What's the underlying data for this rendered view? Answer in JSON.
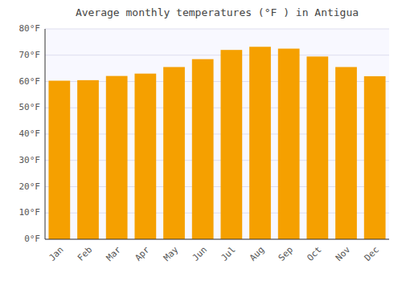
{
  "chart_data": {
    "type": "bar",
    "title": "Average monthly temperatures (°F ) in Antigua",
    "categories": [
      "Jan",
      "Feb",
      "Mar",
      "Apr",
      "May",
      "Jun",
      "Jul",
      "Aug",
      "Sep",
      "Oct",
      "Nov",
      "Dec"
    ],
    "values": [
      60.3,
      60.5,
      62.1,
      63.0,
      65.5,
      68.5,
      72.0,
      73.2,
      72.5,
      69.5,
      65.5,
      62.0
    ],
    "color": "#F5A000",
    "ylim": [
      0,
      80
    ],
    "yticks": [
      {
        "value": 0,
        "label": "0°F"
      },
      {
        "value": 10,
        "label": "10°F"
      },
      {
        "value": 20,
        "label": "20°F"
      },
      {
        "value": 30,
        "label": "30°F"
      },
      {
        "value": 40,
        "label": "40°F"
      },
      {
        "value": 50,
        "label": "50°F"
      },
      {
        "value": 60,
        "label": "60°F"
      },
      {
        "value": 70,
        "label": "70°F"
      },
      {
        "value": 80,
        "label": "80°F"
      }
    ],
    "grid": true
  }
}
